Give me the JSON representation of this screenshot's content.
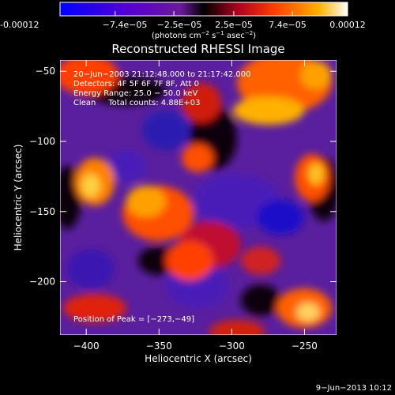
{
  "colorbar": {
    "tick_labels": [
      "-0.00012",
      "−7.4e−05",
      "−2.5e−05",
      "2.5e−05",
      "7.4e−05",
      "0.00012"
    ],
    "tick_values": [
      -0.00012,
      -7.4e-05,
      -2.5e-05,
      2.5e-05,
      7.4e-05,
      0.00012
    ],
    "range": [
      -0.00012,
      0.00012
    ],
    "units": {
      "base": "(photons cm",
      "sup1": "−2",
      "mid": " s",
      "sup2": "−1",
      "end": " asec",
      "sup3": "−2",
      "close": ")"
    },
    "colors": [
      "#0000ff",
      "#6a00c8",
      "#7b1fa0",
      "#000000",
      "#ff3000",
      "#ffa000",
      "#ffffff"
    ]
  },
  "title": "Reconstructed RHESSI Image",
  "info": [
    "20−Jun−2003 21:12:48.000 to 21:17:42.000",
    "Detectors: 4F 5F 6F 7F 8F, Att 0",
    "Energy Range: 25.0 − 50.0 keV",
    "Clean     Total counts: 4.88E+03"
  ],
  "peak_label": "Position of Peak = [−273,−49]",
  "xaxis": {
    "label": "Heliocentric X (arcsec)",
    "range": [
      -418,
      -228
    ],
    "ticks": [
      -400,
      -350,
      -300,
      -250
    ],
    "tick_labels": [
      "−400",
      "−350",
      "−300",
      "−250"
    ]
  },
  "yaxis": {
    "label": "Heliocentric Y (arcsec)",
    "range": [
      -238,
      -42
    ],
    "ticks": [
      -50,
      -100,
      -150,
      -200
    ],
    "tick_labels": [
      "−50",
      "−100",
      "−150",
      "−200"
    ]
  },
  "footer_date": "9−Jun−2013 10:12"
}
